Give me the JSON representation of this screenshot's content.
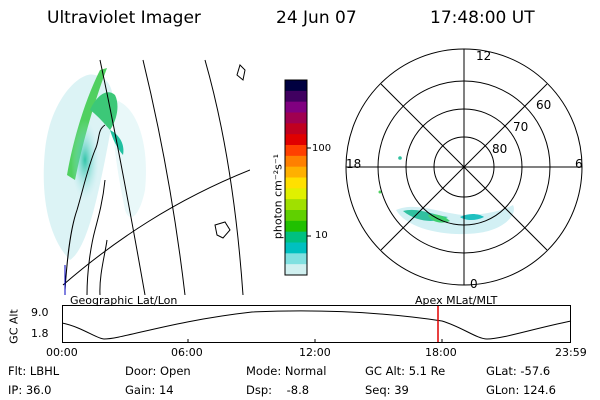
{
  "header": {
    "instrument": "Ultraviolet Imager",
    "date": "24 Jun 07",
    "time": "17:48:00 UT"
  },
  "geo_panel": {
    "label": "Geographic Lat/Lon"
  },
  "polar_panel": {
    "label": "Apex MLat/MLT",
    "mlt_labels": [
      "12",
      "18",
      "6",
      "0"
    ],
    "lat_labels": [
      "60",
      "70",
      "80"
    ]
  },
  "colorbar": {
    "unit_label": "photon cm⁻²s⁻¹",
    "ticks": [
      "100",
      "10"
    ],
    "colors": [
      "#000040",
      "#400060",
      "#800080",
      "#a00050",
      "#c00020",
      "#e00000",
      "#ff4000",
      "#ff8000",
      "#ffb000",
      "#ffe000",
      "#e0f000",
      "#a0e000",
      "#60d000",
      "#20c000",
      "#00c080",
      "#00c0c0",
      "#80e0e0",
      "#d0f0f0"
    ]
  },
  "timeline": {
    "y_label": "GC Alt",
    "y_ticks": [
      "9.0",
      "1.8"
    ],
    "x_ticks": [
      "00:00",
      "06:00",
      "12:00",
      "18:00",
      "23:59"
    ],
    "marker_color": "#e00000"
  },
  "status": {
    "flt": "Flt: LBHL",
    "ip": "IP: 36.0",
    "door": "Door: Open",
    "gain": "Gain: 14",
    "mode": "Mode: Normal",
    "dsp": "Dsp:    -8.8",
    "gc_alt": "GC Alt: 5.1 Re",
    "seq": "Seq: 39",
    "glat": "GLat: -57.6",
    "glon": "GLon: 124.6"
  }
}
